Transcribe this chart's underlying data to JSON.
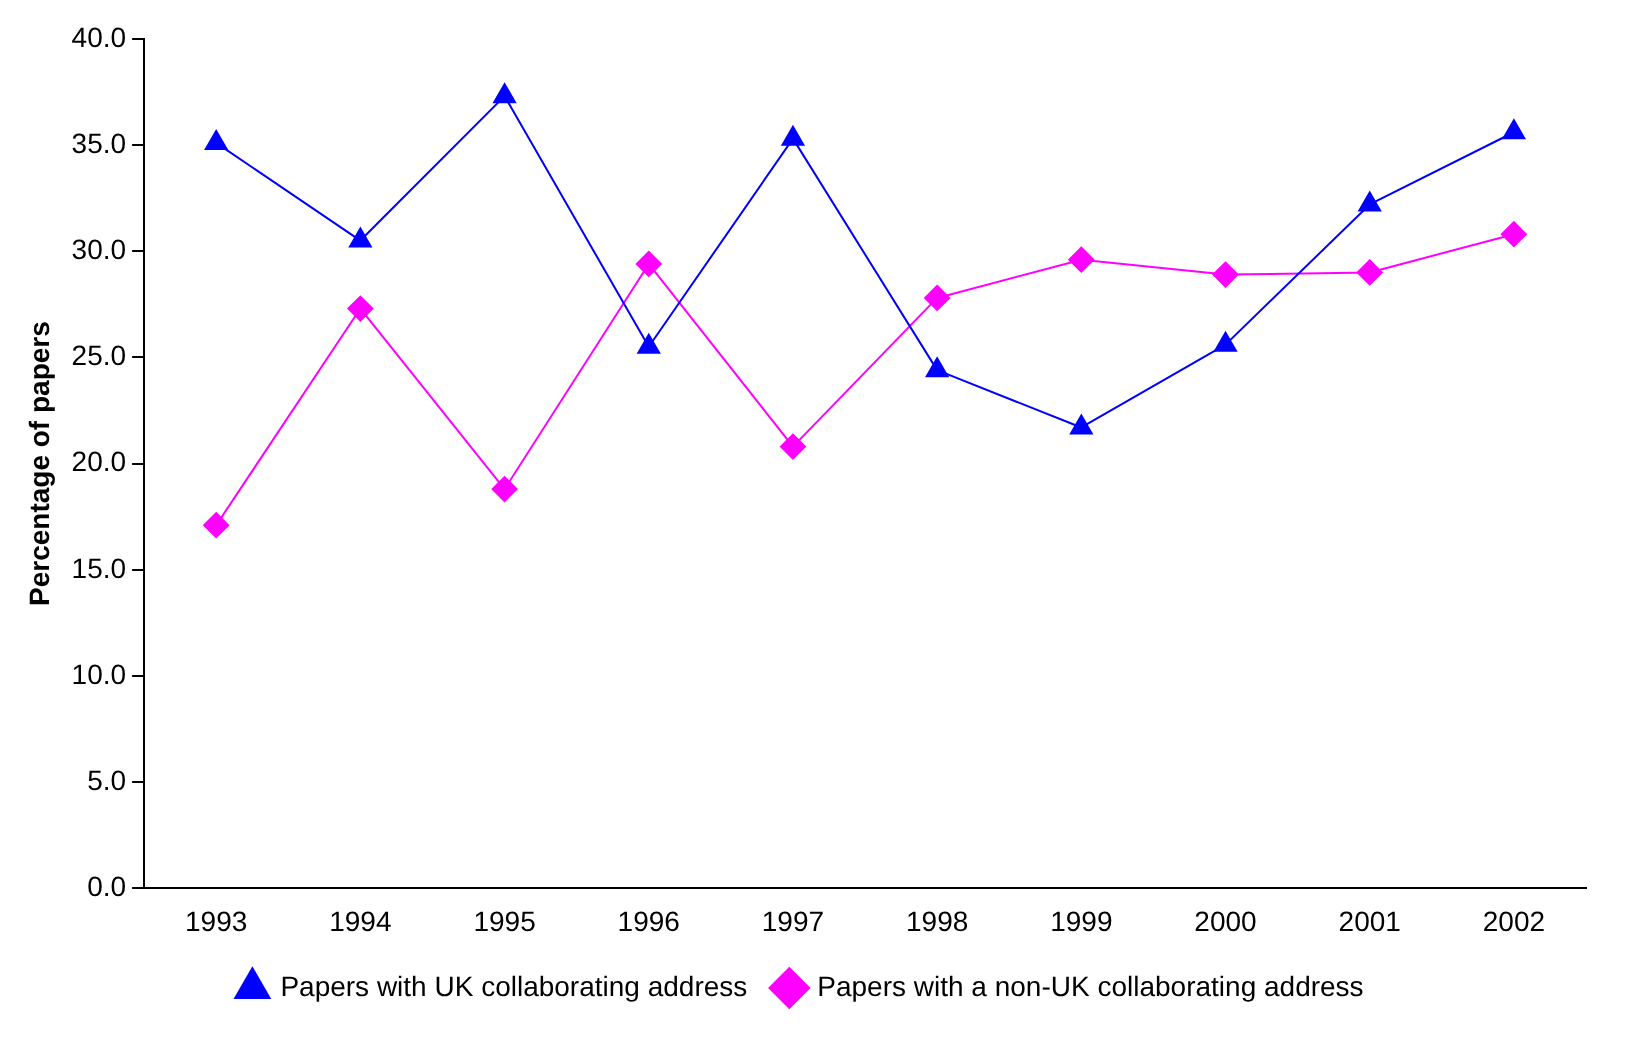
{
  "chart_data": {
    "type": "line",
    "ylabel": "Percentage of papers",
    "categories": [
      "1993",
      "1994",
      "1995",
      "1996",
      "1997",
      "1998",
      "1999",
      "2000",
      "2001",
      "2002"
    ],
    "series": [
      {
        "name": "Papers with UK collaborating address",
        "color": "#0000ff",
        "marker": "triangle",
        "values": [
          35.1,
          30.5,
          37.3,
          25.5,
          35.3,
          24.4,
          21.7,
          25.6,
          32.2,
          35.6
        ]
      },
      {
        "name": "Papers with a non-UK collaborating address",
        "color": "#ff00ff",
        "marker": "diamond",
        "values": [
          17.1,
          27.3,
          18.8,
          29.4,
          20.8,
          27.8,
          29.6,
          28.9,
          29.0,
          30.8
        ]
      }
    ],
    "ylim": [
      0,
      40
    ],
    "yticks": [
      {
        "value": 0,
        "label": "0.0"
      },
      {
        "value": 5,
        "label": "5.0"
      },
      {
        "value": 10,
        "label": "10.0"
      },
      {
        "value": 15,
        "label": "15.0"
      },
      {
        "value": 20,
        "label": "20.0"
      },
      {
        "value": 25,
        "label": "25.0"
      },
      {
        "value": 30,
        "label": "30.0"
      },
      {
        "value": 35,
        "label": "35.0"
      },
      {
        "value": 40,
        "label": "40.0"
      }
    ],
    "grid": false,
    "legend": "bottom",
    "line_style": "solid"
  }
}
